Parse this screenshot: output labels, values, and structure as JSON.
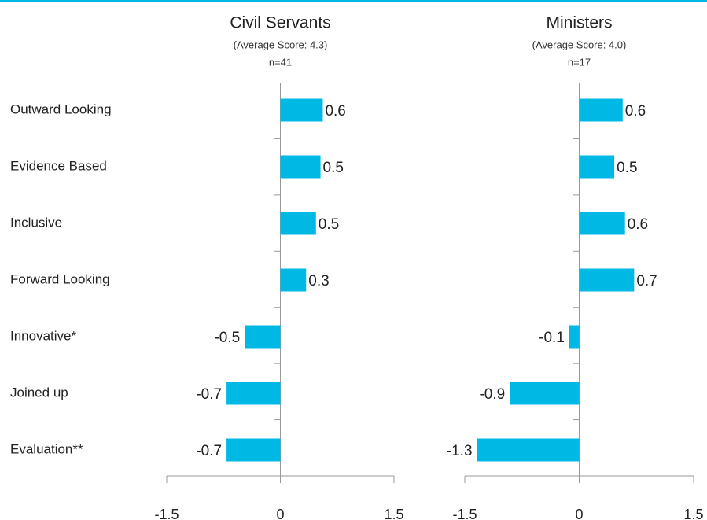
{
  "chart_data": [
    {
      "type": "bar",
      "orientation": "horizontal",
      "title": "Civil Servants",
      "subtitle": "(Average Score: 4.3)",
      "sample_size": "n=41",
      "categories": [
        "Outward Looking",
        "Evidence Based",
        "Inclusive",
        "Forward Looking",
        "Innovative*",
        "Joined up",
        "Evaluation**"
      ],
      "values": [
        0.56,
        0.53,
        0.47,
        0.34,
        -0.47,
        -0.71,
        -0.71
      ],
      "value_labels": [
        "0.6",
        "0.5",
        "0.5",
        "0.3",
        "-0.5",
        "-0.7",
        "-0.7"
      ],
      "color": "#00b8e4",
      "xlim": [
        -1.5,
        1.5
      ],
      "xticks": [
        -1.5,
        0,
        1.5
      ]
    },
    {
      "type": "bar",
      "orientation": "horizontal",
      "title": "Ministers",
      "subtitle": "(Average Score: 4.0)",
      "sample_size": "n=17",
      "values": [
        0.57,
        0.46,
        0.6,
        0.72,
        -0.13,
        -0.91,
        -1.34
      ],
      "value_labels": [
        "0.6",
        "0.5",
        "0.6",
        "0.7",
        "-0.1",
        "-0.9",
        "-1.3"
      ],
      "color": "#00b8e4",
      "xlim": [
        -1.5,
        1.5
      ],
      "xticks": [
        -1.5,
        0,
        1.5
      ]
    }
  ]
}
